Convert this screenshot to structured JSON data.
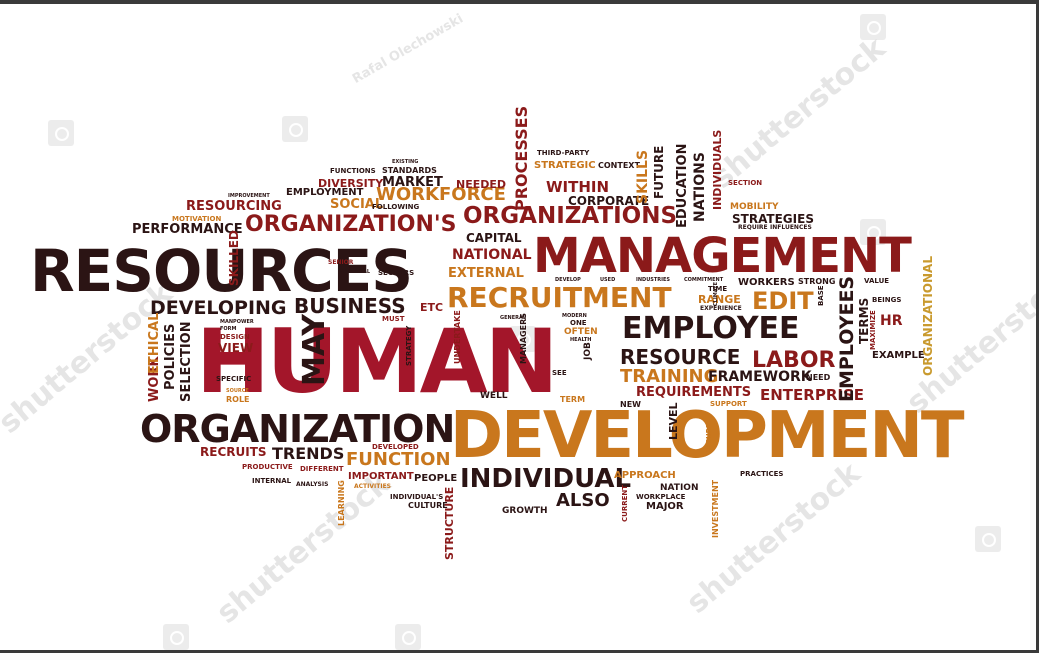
{
  "colors": {
    "dark": "#2b1414",
    "maroon": "#8b1a1a",
    "crimson": "#a3162a",
    "orange": "#d17a1a",
    "gold": "#c99a2e",
    "gray": "#5a4a4a"
  },
  "watermarks": [
    "shutterstock",
    "Rafal Olechowski"
  ],
  "words": {
    "human": "HUMAN",
    "resources": "RESOURCES",
    "management": "MANAGEMENT",
    "development": "DEVELOPMENT",
    "organization": "ORGANIZATION",
    "organizations": "ORGANIZATIONS",
    "organizations_s": "ORGANIZATION'S",
    "recruitment": "RECRUITMENT",
    "employee": "EMPLOYEE",
    "employees": "EMPLOYEES",
    "individual": "INDIVIDUAL",
    "processes": "PROCESSES",
    "workforce": "WORKFORCE",
    "business": "BUSINESS",
    "developing": "DEVELOPING",
    "resource": "RESOURCE",
    "labor": "LABOR",
    "training": "TRAINING",
    "edit": "EDIT",
    "function": "FUNCTION",
    "trends": "TRENDS",
    "may": "MAY",
    "performance": "PERFORMANCE",
    "resourcing": "RESOURCING",
    "social": "SOCIAL",
    "market": "MARKET",
    "diversity": "DIVERSITY",
    "employment": "EMPLOYMENT",
    "functions": "FUNCTIONS",
    "standards": "STANDARDS",
    "needed": "NEEDED",
    "within": "WITHIN",
    "strategic": "STRATEGIC",
    "third_party": "THIRD-PARTY",
    "context": "CONTEXT",
    "corporate": "CORPORATE",
    "skills": "SKILLS",
    "future": "FUTURE",
    "education": "EDUCATION",
    "nations": "NATIONS",
    "individuals": "INDIVIDUALS",
    "section": "SECTION",
    "mobility": "MOBILITY",
    "strategies": "STRATEGIES",
    "require": "REQUIRE",
    "influences": "INFLUENCES",
    "capital": "CAPITAL",
    "national": "NATIONAL",
    "external": "EXTERNAL",
    "skilled": "SKILLED",
    "motivation": "MOTIVATION",
    "sectors": "SECTORS",
    "senior": "SENIOR",
    "financial": "FINANCIAL",
    "etc": "ETC",
    "range": "RANGE",
    "time": "TIME",
    "workers": "WORKERS",
    "strong": "STRONG",
    "value": "VALUE",
    "hr": "HR",
    "terms": "TERMS",
    "maximize": "MAXIMIZE",
    "beings": "BEINGS",
    "example": "EXAMPLE",
    "organizational": "ORGANIZATIONAL",
    "framework": "FRAMEWORK",
    "need": "NEED",
    "enterprise": "ENTERPRISE",
    "requirements": "REQUIREMENTS",
    "support": "SUPPORT",
    "new": "NEW",
    "level": "LEVEL",
    "secure": "SECURE",
    "practices": "PRACTICES",
    "approach": "APPROACH",
    "nation": "NATION",
    "workplace": "WORKPLACE",
    "major": "MAJOR",
    "investment": "INVESTMENT",
    "current": "CURRENT",
    "growth": "GROWTH",
    "also": "ALSO",
    "structure": "STRUCTURE",
    "people": "PEOPLE",
    "culture": "CULTURE",
    "individuals_s": "INDIVIDUAL'S",
    "important": "IMPORTANT",
    "activities": "ACTIVITIES",
    "learning": "LEARNING",
    "developed": "DEVELOPED",
    "different": "DIFFERENT",
    "productive": "PRODUCTIVE",
    "recruits": "RECRUITS",
    "internal": "INTERNAL",
    "analysis": "ANALYSIS",
    "work": "WORK",
    "ethical": "ETHICAL",
    "policies": "POLICIES",
    "selection": "SELECTION",
    "design": "DESIGN",
    "view": "VIEW",
    "specific": "SPECIFIC",
    "role": "ROLE",
    "source": "SOURCE",
    "manpower": "MANPOWER",
    "form": "FORM",
    "must": "MUST",
    "undertake": "UNDERTAKE",
    "strategy": "STRATEGY",
    "general": "GENERAL",
    "managers": "MANAGERS",
    "well": "WELL",
    "see": "SEE",
    "often": "OFTEN",
    "one": "ONE",
    "job": "JOB",
    "term": "TERM",
    "following": "FOLLOWING",
    "improvement": "IMPROVEMENT",
    "existing": "EXISTING",
    "experience": "EXPERIENCE",
    "base": "BASE",
    "climate": "CLIMATE",
    "health": "HEALTH",
    "modern": "MODERN",
    "develop": "DEVELOP",
    "used": "USED",
    "industries": "INDUSTRIES",
    "commitment": "COMMITMENT"
  }
}
